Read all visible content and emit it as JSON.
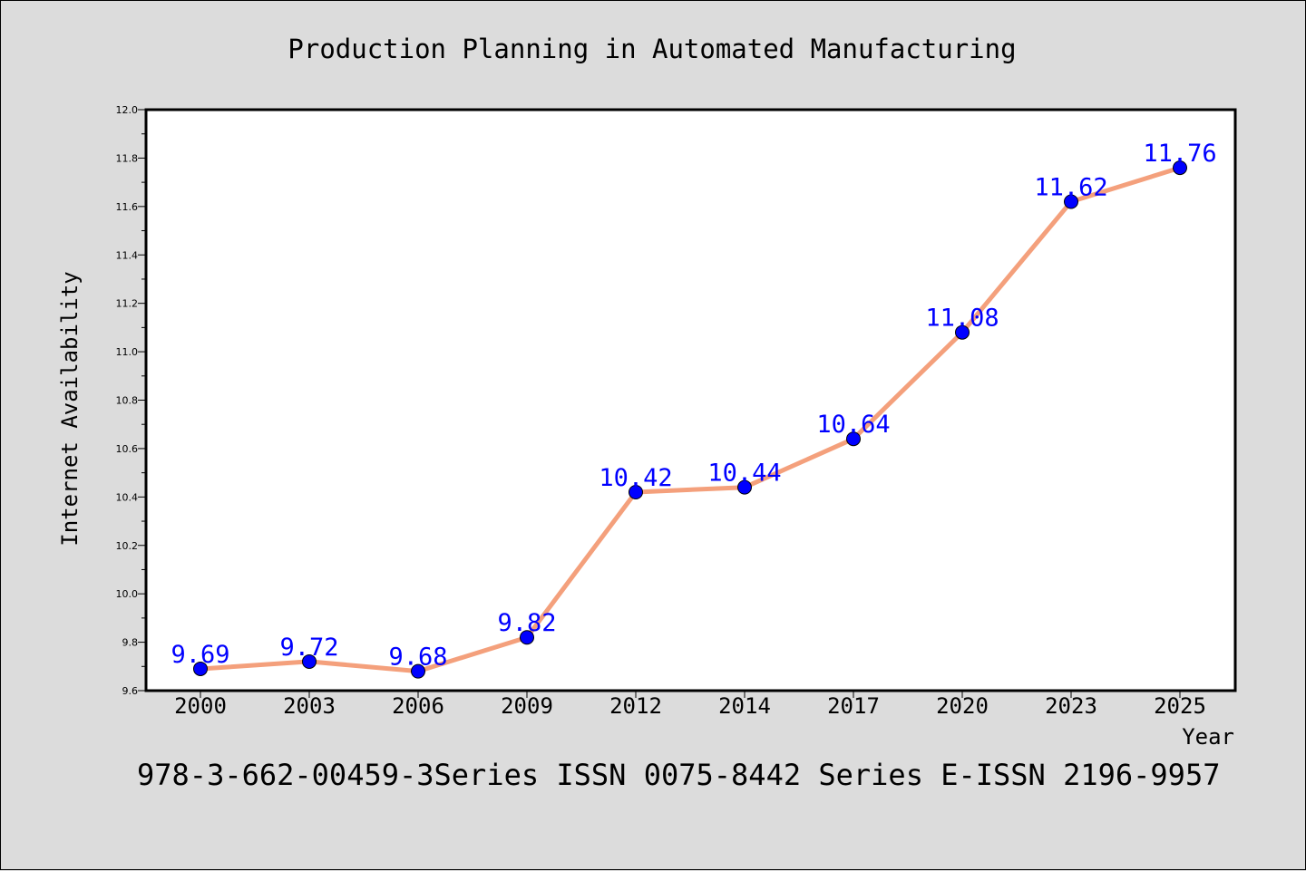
{
  "chart_data": {
    "type": "line",
    "title": "Production Planning in Automated Manufacturing",
    "xlabel": "Year",
    "ylabel": "Internet Availability",
    "categories": [
      "2000",
      "2003",
      "2006",
      "2009",
      "2012",
      "2014",
      "2017",
      "2020",
      "2023",
      "2025"
    ],
    "values": [
      9.69,
      9.72,
      9.68,
      9.82,
      10.42,
      10.44,
      10.64,
      11.08,
      11.62,
      11.76
    ],
    "data_labels": [
      "9.69",
      "9.72",
      "9.68",
      "9.82",
      "10.42",
      "10.44",
      "10.64",
      "11.08",
      "11.62",
      "11.76"
    ],
    "ylim": [
      9.6,
      12.0
    ],
    "y_ticks": [
      "9.6",
      "9.8",
      "10.0",
      "10.2",
      "10.4",
      "10.6",
      "10.8",
      "11.0",
      "11.2",
      "11.4",
      "11.6",
      "11.8",
      "12.0"
    ],
    "grid": false,
    "legend": "none",
    "line_color": "#f4a07c",
    "marker_color": "#0000ff",
    "label_color": "#0000ff",
    "background": "#dcdcdc",
    "plot_background": "#ffffff"
  },
  "footer": {
    "text": "978-3-662-00459-3Series ISSN 0075-8442 Series E-ISSN 2196-9957"
  }
}
